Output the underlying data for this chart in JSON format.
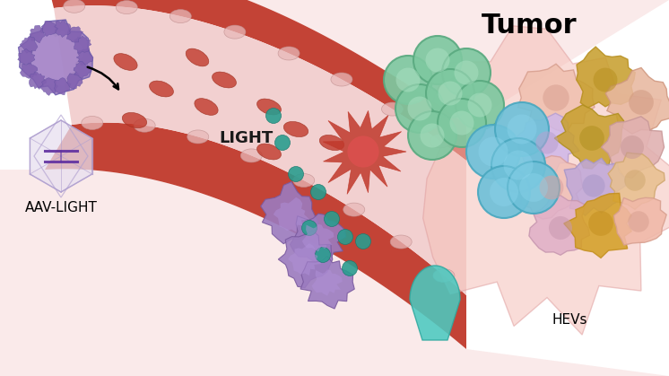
{
  "bg_color": "#ffffff",
  "title_tumor": "Tumor",
  "label_aav": "AAV-LIGHT",
  "label_light": "LIGHT",
  "label_hevs": "HEVs",
  "vessel_outer_color": "#c0392b",
  "vessel_lumen_color": "#f2d0d0",
  "tissue_color": "#faeaea",
  "rbc_color": "#c0392b",
  "wall_cell_color": "#e8b8b8",
  "teal_dot_color": "#2a9d8f",
  "green_cell_fc": "#7ec8a0",
  "green_cell_ec": "#5aaa80",
  "green_cell_inner": "#a8dfc0",
  "blue_cell_fc": "#6fc0d8",
  "blue_cell_ec": "#4aa8c0",
  "blue_cell_inner": "#90d8f0",
  "purple_tcell_fc": "#9b7bbf",
  "purple_tcell_ec": "#7a5a9f",
  "purple_tcell_inner": "#b090d8",
  "dendritic_color": "#c0392b",
  "dendritic_inner": "#e05050",
  "aav_virus_fc": "#9b7bbf",
  "aav_virus_ec": "#7060af",
  "aav_virus_inner": "#b090d0",
  "aav_bump_fc": "#8060b0",
  "aav_bump_ec": "#6050a0",
  "capsid_fc": "#e8e0f0",
  "capsid_ec": "#b0a0d0",
  "capsid_dna": "#6030a0",
  "tumor_bg_fc": "#f5c0b8",
  "tumor_bg_ec": "#e0a0a0",
  "hev_fc": "#4cc9c0",
  "hev_ec": "#30a9a0"
}
